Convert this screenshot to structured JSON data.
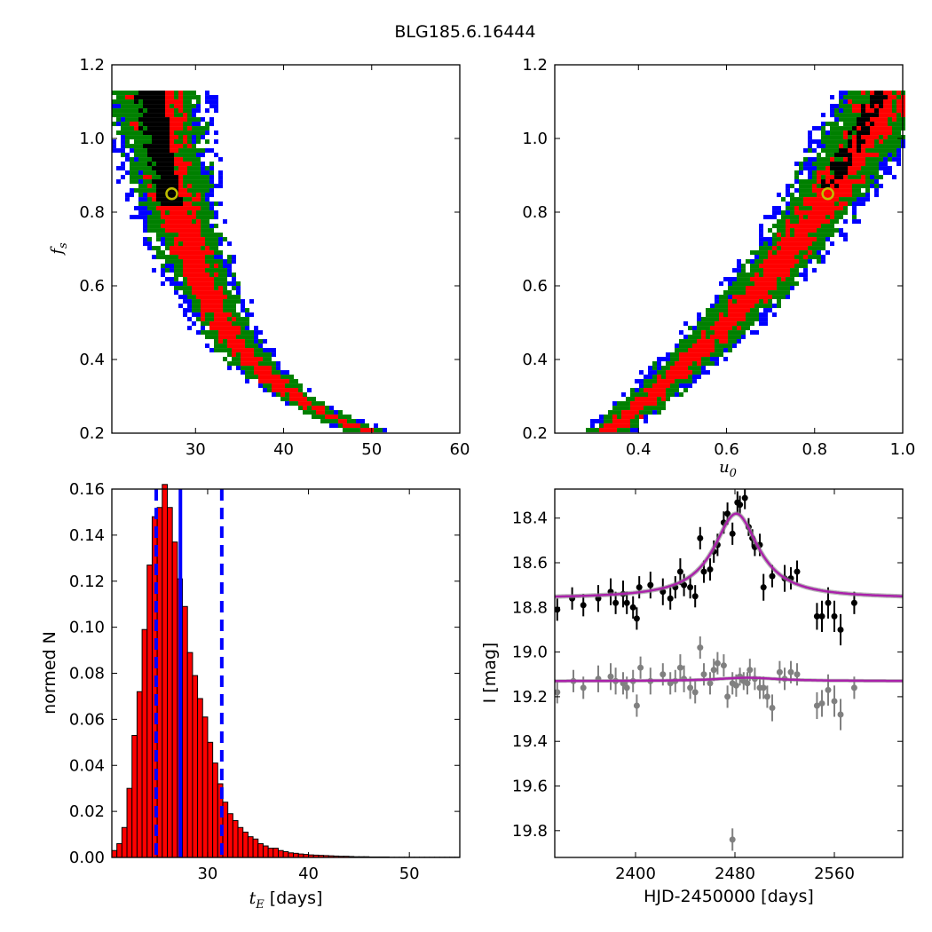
{
  "title": "BLG185.6.16444",
  "colors": {
    "sigma3": "#0000ff",
    "sigma2": "#008000",
    "sigma1": "#ff0000",
    "best": "#000000",
    "marker_edge": "#bfbf00",
    "hist_fill": "#ff0000",
    "median_line": "#0000ff",
    "model": "#aa22aa",
    "data_top": "#000000",
    "data_bottom": "#808080"
  },
  "chart_data": [
    {
      "type": "heatmap",
      "panel": "top-left",
      "xlabel": "",
      "ylabel": "f_s",
      "xlim": [
        20.5,
        60
      ],
      "ylim": [
        0.2,
        1.2
      ],
      "xticks": [
        30,
        40,
        50,
        60
      ],
      "yticks": [
        0.2,
        0.4,
        0.6,
        0.8,
        1.0,
        1.2
      ],
      "best_fit": {
        "x": 27.3,
        "y": 0.85
      },
      "ridge": [
        [
          25.5,
          1.13
        ],
        [
          26.5,
          0.95
        ],
        [
          28,
          0.8
        ],
        [
          30,
          0.66
        ],
        [
          32,
          0.55
        ],
        [
          34,
          0.46
        ],
        [
          37,
          0.38
        ],
        [
          40,
          0.32
        ],
        [
          44,
          0.26
        ],
        [
          49,
          0.21
        ]
      ],
      "levels": [
        "best",
        "1-sigma",
        "2-sigma",
        "3-sigma"
      ]
    },
    {
      "type": "heatmap",
      "panel": "top-right",
      "xlabel": "u_0",
      "ylabel": "",
      "xlim": [
        0.21,
        1.0
      ],
      "ylim": [
        0.2,
        1.2
      ],
      "xticks": [
        0.4,
        0.6,
        0.8,
        1.0
      ],
      "yticks": [
        0.2,
        0.4,
        0.6,
        0.8,
        1.0,
        1.2
      ],
      "best_fit": {
        "x": 0.83,
        "y": 0.85
      },
      "ridge": [
        [
          0.34,
          0.21
        ],
        [
          0.42,
          0.29
        ],
        [
          0.5,
          0.38
        ],
        [
          0.58,
          0.47
        ],
        [
          0.66,
          0.57
        ],
        [
          0.74,
          0.69
        ],
        [
          0.8,
          0.79
        ],
        [
          0.86,
          0.9
        ],
        [
          0.92,
          1.02
        ],
        [
          0.96,
          1.13
        ]
      ],
      "levels": [
        "best",
        "1-sigma",
        "2-sigma",
        "3-sigma"
      ]
    },
    {
      "type": "bar",
      "panel": "bottom-left",
      "xlabel": "t_E",
      "xlabel_unit": "[days]",
      "ylabel": "normed N",
      "xlim": [
        20.5,
        55
      ],
      "ylim": [
        0,
        0.16
      ],
      "xticks": [
        30,
        40,
        50
      ],
      "yticks": [
        0.0,
        0.02,
        0.04,
        0.06,
        0.08,
        0.1,
        0.12,
        0.14,
        0.16
      ],
      "bin_start": 20.5,
      "bin_width": 0.5,
      "values": [
        0.003,
        0.006,
        0.013,
        0.03,
        0.053,
        0.072,
        0.099,
        0.127,
        0.148,
        0.152,
        0.162,
        0.152,
        0.137,
        0.121,
        0.109,
        0.089,
        0.079,
        0.069,
        0.061,
        0.05,
        0.041,
        0.032,
        0.024,
        0.019,
        0.016,
        0.013,
        0.011,
        0.009,
        0.008,
        0.006,
        0.005,
        0.004,
        0.004,
        0.003,
        0.0025,
        0.002,
        0.0018,
        0.0015,
        0.0013,
        0.0011,
        0.001,
        0.0009,
        0.0008,
        0.0007,
        0.0006,
        0.0005,
        0.0005,
        0.0004,
        0.0003,
        0.0003,
        0.0003,
        0.0002,
        0.0002,
        0.0002,
        0.0002,
        0.0001,
        0.0001,
        0.0001,
        0.0001,
        0.0001,
        0.0001,
        0.0001,
        0.0001,
        0.0001,
        0.0001,
        0.0001,
        0.0001,
        0.0001,
        0.0001
      ],
      "median": 27.3,
      "interval": [
        24.9,
        31.4
      ]
    },
    {
      "type": "scatter",
      "panel": "bottom-right",
      "xlabel": "HJD-2450000 [days]",
      "ylabel": "I [mag]",
      "xlim": [
        2335,
        2615
      ],
      "ylim": [
        19.92,
        18.27
      ],
      "xticks": [
        2400,
        2480,
        2560
      ],
      "yticks": [
        18.4,
        18.6,
        18.8,
        19.0,
        19.2,
        19.4,
        19.6,
        19.8
      ],
      "model_top": {
        "t0": 2481,
        "base": 18.76,
        "peak": 18.38,
        "width": 22
      },
      "model_bottom": {
        "base": 19.13,
        "dip": 19.115,
        "t0": 2490,
        "width": 30
      },
      "series": [
        {
          "name": "",
          "points": [
            [
              2337,
              18.81,
              0.05
            ],
            [
              2349,
              18.76,
              0.05
            ],
            [
              2358,
              18.79,
              0.05
            ],
            [
              2370,
              18.76,
              0.06
            ],
            [
              2380,
              18.73,
              0.06
            ],
            [
              2384,
              18.78,
              0.05
            ],
            [
              2390,
              18.74,
              0.06
            ],
            [
              2393,
              18.78,
              0.05
            ],
            [
              2398,
              18.8,
              0.05
            ],
            [
              2401,
              18.85,
              0.05
            ],
            [
              2403,
              18.71,
              0.05
            ],
            [
              2412,
              18.7,
              0.06
            ],
            [
              2422,
              18.73,
              0.06
            ],
            [
              2428,
              18.76,
              0.05
            ],
            [
              2432,
              18.71,
              0.05
            ],
            [
              2436,
              18.64,
              0.06
            ],
            [
              2439,
              18.7,
              0.05
            ],
            [
              2444,
              18.71,
              0.05
            ],
            [
              2448,
              18.75,
              0.05
            ],
            [
              2452,
              18.49,
              0.05
            ],
            [
              2455,
              18.64,
              0.05
            ],
            [
              2460,
              18.63,
              0.05
            ],
            [
              2463,
              18.55,
              0.05
            ],
            [
              2466,
              18.52,
              0.05
            ],
            [
              2471,
              18.42,
              0.05
            ],
            [
              2474,
              18.38,
              0.05
            ],
            [
              2478,
              18.47,
              0.05
            ],
            [
              2482,
              18.33,
              0.05
            ],
            [
              2484,
              18.34,
              0.04
            ],
            [
              2488,
              18.31,
              0.05
            ],
            [
              2491,
              18.44,
              0.04
            ],
            [
              2494,
              18.49,
              0.04
            ],
            [
              2496,
              18.53,
              0.04
            ],
            [
              2500,
              18.52,
              0.05
            ],
            [
              2503,
              18.71,
              0.06
            ],
            [
              2510,
              18.66,
              0.05
            ],
            [
              2520,
              18.67,
              0.06
            ],
            [
              2525,
              18.67,
              0.05
            ],
            [
              2530,
              18.64,
              0.05
            ],
            [
              2546,
              18.84,
              0.06
            ],
            [
              2550,
              18.84,
              0.07
            ],
            [
              2555,
              18.78,
              0.07
            ],
            [
              2560,
              18.84,
              0.07
            ],
            [
              2565,
              18.9,
              0.07
            ],
            [
              2576,
              18.78,
              0.05
            ]
          ]
        },
        {
          "name": "",
          "points": [
            [
              2337,
              19.18,
              0.05
            ],
            [
              2350,
              19.13,
              0.05
            ],
            [
              2358,
              19.16,
              0.05
            ],
            [
              2370,
              19.12,
              0.06
            ],
            [
              2380,
              19.11,
              0.06
            ],
            [
              2384,
              19.13,
              0.06
            ],
            [
              2390,
              19.14,
              0.05
            ],
            [
              2393,
              19.16,
              0.05
            ],
            [
              2398,
              19.13,
              0.05
            ],
            [
              2401,
              19.24,
              0.05
            ],
            [
              2404,
              19.07,
              0.05
            ],
            [
              2412,
              19.13,
              0.06
            ],
            [
              2422,
              19.1,
              0.05
            ],
            [
              2428,
              19.14,
              0.05
            ],
            [
              2432,
              19.13,
              0.05
            ],
            [
              2436,
              19.07,
              0.06
            ],
            [
              2439,
              19.12,
              0.06
            ],
            [
              2444,
              19.16,
              0.05
            ],
            [
              2448,
              19.18,
              0.05
            ],
            [
              2452,
              18.98,
              0.05
            ],
            [
              2455,
              19.1,
              0.05
            ],
            [
              2460,
              19.14,
              0.05
            ],
            [
              2463,
              19.08,
              0.05
            ],
            [
              2466,
              19.05,
              0.05
            ],
            [
              2471,
              19.06,
              0.05
            ],
            [
              2474,
              19.2,
              0.05
            ],
            [
              2478,
              19.14,
              0.05
            ],
            [
              2481,
              19.15,
              0.05
            ],
            [
              2484,
              19.11,
              0.04
            ],
            [
              2487,
              19.13,
              0.04
            ],
            [
              2490,
              19.14,
              0.05
            ],
            [
              2492,
              19.08,
              0.05
            ],
            [
              2496,
              19.12,
              0.05
            ],
            [
              2500,
              19.16,
              0.05
            ],
            [
              2503,
              19.16,
              0.05
            ],
            [
              2506,
              19.2,
              0.05
            ],
            [
              2510,
              19.25,
              0.06
            ],
            [
              2516,
              19.09,
              0.05
            ],
            [
              2520,
              19.12,
              0.05
            ],
            [
              2525,
              19.09,
              0.05
            ],
            [
              2530,
              19.1,
              0.05
            ],
            [
              2546,
              19.24,
              0.06
            ],
            [
              2550,
              19.23,
              0.06
            ],
            [
              2555,
              19.17,
              0.07
            ],
            [
              2560,
              19.22,
              0.07
            ],
            [
              2565,
              19.28,
              0.07
            ],
            [
              2576,
              19.16,
              0.05
            ],
            [
              2478,
              19.84,
              0.05
            ]
          ]
        }
      ]
    }
  ]
}
